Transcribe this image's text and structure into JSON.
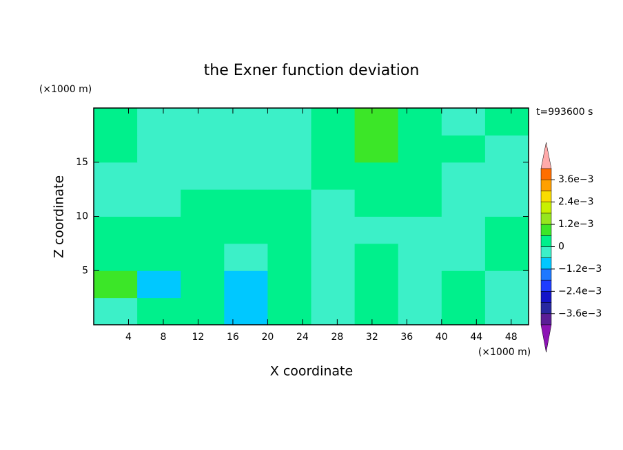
{
  "chart_data": {
    "type": "contour",
    "title": "the Exner function deviation",
    "xlabel": "X coordinate",
    "ylabel": "Z coordinate",
    "xunit": "(×1000 m)",
    "yunit": "(×1000 m)",
    "time_label": "t=993600 s",
    "xlim": [
      0,
      50
    ],
    "ylim": [
      0,
      20
    ],
    "xticks": [
      4,
      8,
      12,
      16,
      20,
      24,
      28,
      32,
      36,
      40,
      44,
      48
    ],
    "yticks": [
      5,
      10,
      15
    ],
    "x": [
      2.5,
      7.5,
      12.5,
      17.5,
      22.5,
      27.5,
      32.5,
      37.5,
      42.5,
      47.5
    ],
    "y": [
      1.25,
      3.75,
      6.25,
      8.75,
      11.25,
      13.75,
      16.25,
      18.75
    ],
    "z": [
      [
        -0.0003,
        0.0003,
        0.0003,
        -0.0009,
        0.0003,
        -0.0003,
        0.0003,
        -0.0003,
        0.0003,
        -0.0003
      ],
      [
        0.0009,
        -0.0009,
        0.0003,
        -0.0009,
        0.0003,
        -0.0003,
        0.0003,
        -0.0003,
        0.0003,
        -0.0003
      ],
      [
        0.0003,
        0.0003,
        0.0003,
        -0.0003,
        0.0003,
        -0.0003,
        0.0003,
        -0.0003,
        -0.0003,
        0.0003
      ],
      [
        0.0003,
        0.0003,
        0.0003,
        0.0003,
        0.0003,
        -0.0003,
        -0.0003,
        -0.0003,
        -0.0003,
        0.0003
      ],
      [
        -0.0003,
        -0.0003,
        0.0003,
        0.0003,
        0.0003,
        -0.0003,
        0.0003,
        0.0003,
        -0.0003,
        -0.0003
      ],
      [
        -0.0003,
        -0.0003,
        -0.0003,
        -0.0003,
        -0.0003,
        0.0003,
        0.0003,
        0.0003,
        -0.0003,
        -0.0003
      ],
      [
        0.0003,
        -0.0003,
        -0.0003,
        -0.0003,
        -0.0003,
        0.0003,
        0.0009,
        0.0003,
        0.0003,
        -0.0003
      ],
      [
        0.0003,
        -0.0003,
        -0.0003,
        -0.0003,
        -0.0003,
        0.0003,
        0.0009,
        0.0003,
        -0.0003,
        0.0003
      ]
    ],
    "colorbar": {
      "levels": [
        -0.0042,
        -0.0036,
        -0.003,
        -0.0024,
        -0.0018,
        -0.0012,
        -0.0006,
        0,
        0.0006,
        0.0012,
        0.0018,
        0.0024,
        0.003,
        0.0036,
        0.0042
      ],
      "colors": [
        "#5a1e96",
        "#2828a0",
        "#1414c8",
        "#1e3cff",
        "#1e78ff",
        "#00c8ff",
        "#3cf0c8",
        "#00f08c",
        "#3ce628",
        "#96e61e",
        "#c8f000",
        "#fadc00",
        "#ffa000",
        "#ff6e00",
        "#ff2814"
      ],
      "under_color": "#8c14b4",
      "over_color": "#ffaaaa",
      "ticks": [
        {
          "value": -0.0036,
          "label": "−3.6e−3"
        },
        {
          "value": -0.0024,
          "label": "−2.4e−3"
        },
        {
          "value": -0.0012,
          "label": "−1.2e−3"
        },
        0,
        {
          "value": 0.0012,
          "label": "1.2e−3"
        },
        {
          "value": 0.0024,
          "label": "2.4e−3"
        },
        {
          "value": 0.0036,
          "label": "3.6e−3"
        }
      ]
    }
  }
}
